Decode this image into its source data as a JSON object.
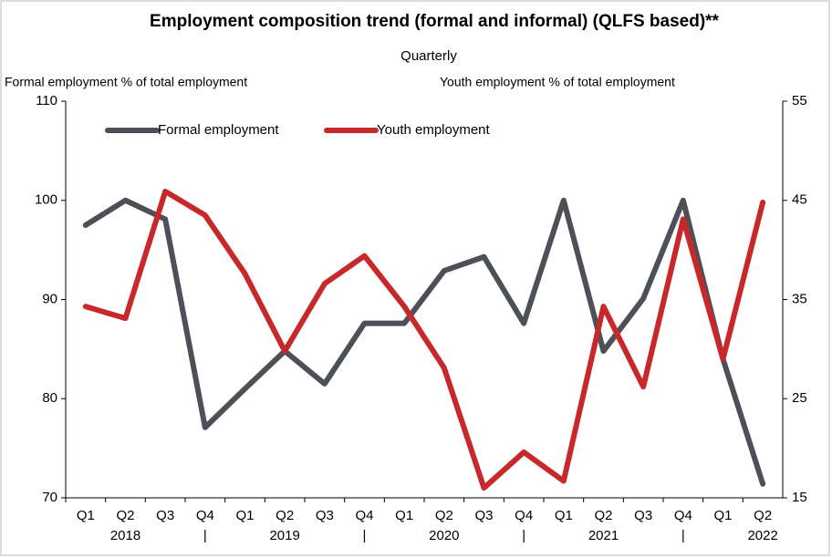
{
  "chart_data": {
    "type": "line",
    "title": "Employment composition trend (formal and informal) (QLFS based)**",
    "subtitle": "Quarterly",
    "ylabel": "Formal employment % of total employment",
    "y2label": "Youth employment % of total employment",
    "categories": [
      "Q1",
      "Q2",
      "Q3",
      "Q4",
      "Q1",
      "Q2",
      "Q3",
      "Q4",
      "Q1",
      "Q2",
      "Q3",
      "Q4",
      "Q1",
      "Q2",
      "Q3",
      "Q4",
      "Q1",
      "Q2"
    ],
    "category_groups": [
      null,
      "2018",
      null,
      "|",
      null,
      "2019",
      null,
      "|",
      null,
      "2020",
      null,
      "|",
      null,
      "2021",
      null,
      "|",
      null,
      "2022"
    ],
    "series": [
      {
        "name": "Formal employment",
        "color": "#4d5157",
        "values": [
          97.5,
          100,
          98.1,
          77.1,
          81,
          84.8,
          81.5,
          87.6,
          87.6,
          92.9,
          94.3,
          87.6,
          100,
          84.8,
          90.1,
          100,
          84,
          71.4
        ]
      },
      {
        "name": "Youth employment",
        "color": "#c8282a",
        "axis": "y2",
        "values": [
          34.3,
          33.1,
          45.9,
          43.5,
          37.6,
          29.8,
          36.6,
          39.4,
          34.3,
          28.1,
          16.0,
          19.6,
          16.7,
          34.3,
          26.2,
          43.1,
          29.0,
          44.8
        ]
      }
    ],
    "ylim": [
      70,
      110
    ],
    "yticks": [
      70,
      80,
      90,
      100,
      110
    ],
    "y2lim": [
      15,
      55
    ],
    "y2ticks": [
      15,
      25,
      35,
      45,
      55
    ],
    "legend": "top-left"
  }
}
